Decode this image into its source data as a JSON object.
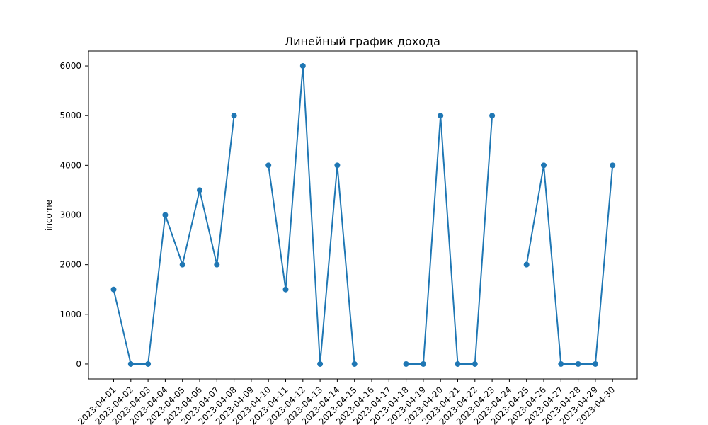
{
  "chart_data": {
    "type": "line",
    "title": "Линейный график дохода",
    "xlabel": "",
    "ylabel": "income",
    "categories": [
      "2023-04-01",
      "2023-04-02",
      "2023-04-03",
      "2023-04-04",
      "2023-04-05",
      "2023-04-06",
      "2023-04-07",
      "2023-04-08",
      "2023-04-09",
      "2023-04-10",
      "2023-04-11",
      "2023-04-12",
      "2023-04-13",
      "2023-04-14",
      "2023-04-15",
      "2023-04-16",
      "2023-04-17",
      "2023-04-18",
      "2023-04-19",
      "2023-04-20",
      "2023-04-21",
      "2023-04-22",
      "2023-04-23",
      "2023-04-24",
      "2023-04-25",
      "2023-04-26",
      "2023-04-27",
      "2023-04-28",
      "2023-04-29",
      "2023-04-30"
    ],
    "series": [
      {
        "color": "#1f77b4",
        "values": [
          1500,
          0,
          0,
          3000,
          2000,
          3500,
          2000,
          5000,
          null,
          4000,
          1500,
          6000,
          0,
          4000,
          0,
          null,
          null,
          0,
          0,
          5000,
          0,
          0,
          5000,
          null,
          2000,
          4000,
          0,
          0,
          0,
          4000
        ],
        "x_index_shift": 0
      }
    ],
    "yticks": [
      0,
      1000,
      2000,
      3000,
      4000,
      5000,
      6000
    ],
    "ylim": [
      -300,
      6300
    ],
    "grid": false,
    "legend": "none",
    "x_tick_rotation": 45
  }
}
